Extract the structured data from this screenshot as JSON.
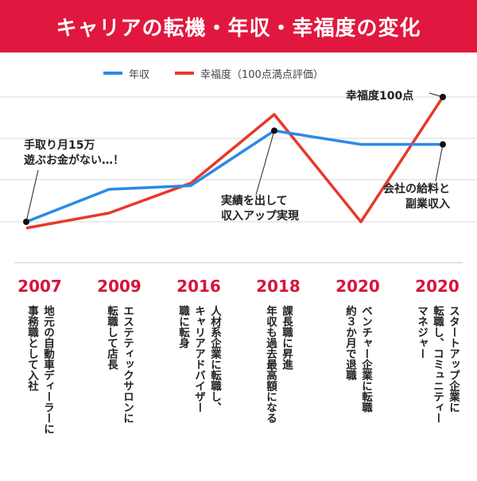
{
  "header": {
    "title": "キャリアの転機・年収・幸福度の変化"
  },
  "colors": {
    "brand": "#e0183f",
    "income": "#2b8ae6",
    "happiness": "#e8382a",
    "year": "#d8143a"
  },
  "legend": [
    {
      "label": "年収",
      "color": "#2b8ae6"
    },
    {
      "label": "幸福度（100点満点評価）",
      "color": "#e8382a"
    }
  ],
  "annotations": {
    "start": "手取り月15万\n遊ぶお金がない…！",
    "peak": "実績を出して\n収入アップ実現",
    "happy": "幸福度100点",
    "side": "会社の給料と\n副業収入"
  },
  "chart_data": {
    "type": "line",
    "title": "キャリアの転機・年収・幸福度の変化",
    "categories": [
      "2007",
      "2009",
      "2016",
      "2018",
      "2020",
      "2020"
    ],
    "ylim": [
      0,
      100
    ],
    "grid": true,
    "legend": "top",
    "series": [
      {
        "name": "年収",
        "values": [
          0,
          26,
          29,
          73,
          62,
          62
        ]
      },
      {
        "name": "幸福度（100点満点評価）",
        "values": [
          -5,
          7,
          31,
          86,
          0,
          100
        ]
      }
    ]
  },
  "timeline": [
    {
      "year": "2007",
      "text": "地元の自動車ディーラーに\n事務職として入社"
    },
    {
      "year": "2009",
      "text": "エステティックサロンに\n転職して店長"
    },
    {
      "year": "2016",
      "text": "人材系企業に転職し、\nキャリアアドバイザー\n職に転身"
    },
    {
      "year": "2018",
      "text": "課長職に昇進\n年収も過去最高額になる"
    },
    {
      "year": "2020",
      "text": "ベンチャー企業に転職\n約３か月で退職"
    },
    {
      "year": "2020",
      "text": "スタートアップ企業に\n転職し、コミュニティー\nマネジャー"
    }
  ]
}
